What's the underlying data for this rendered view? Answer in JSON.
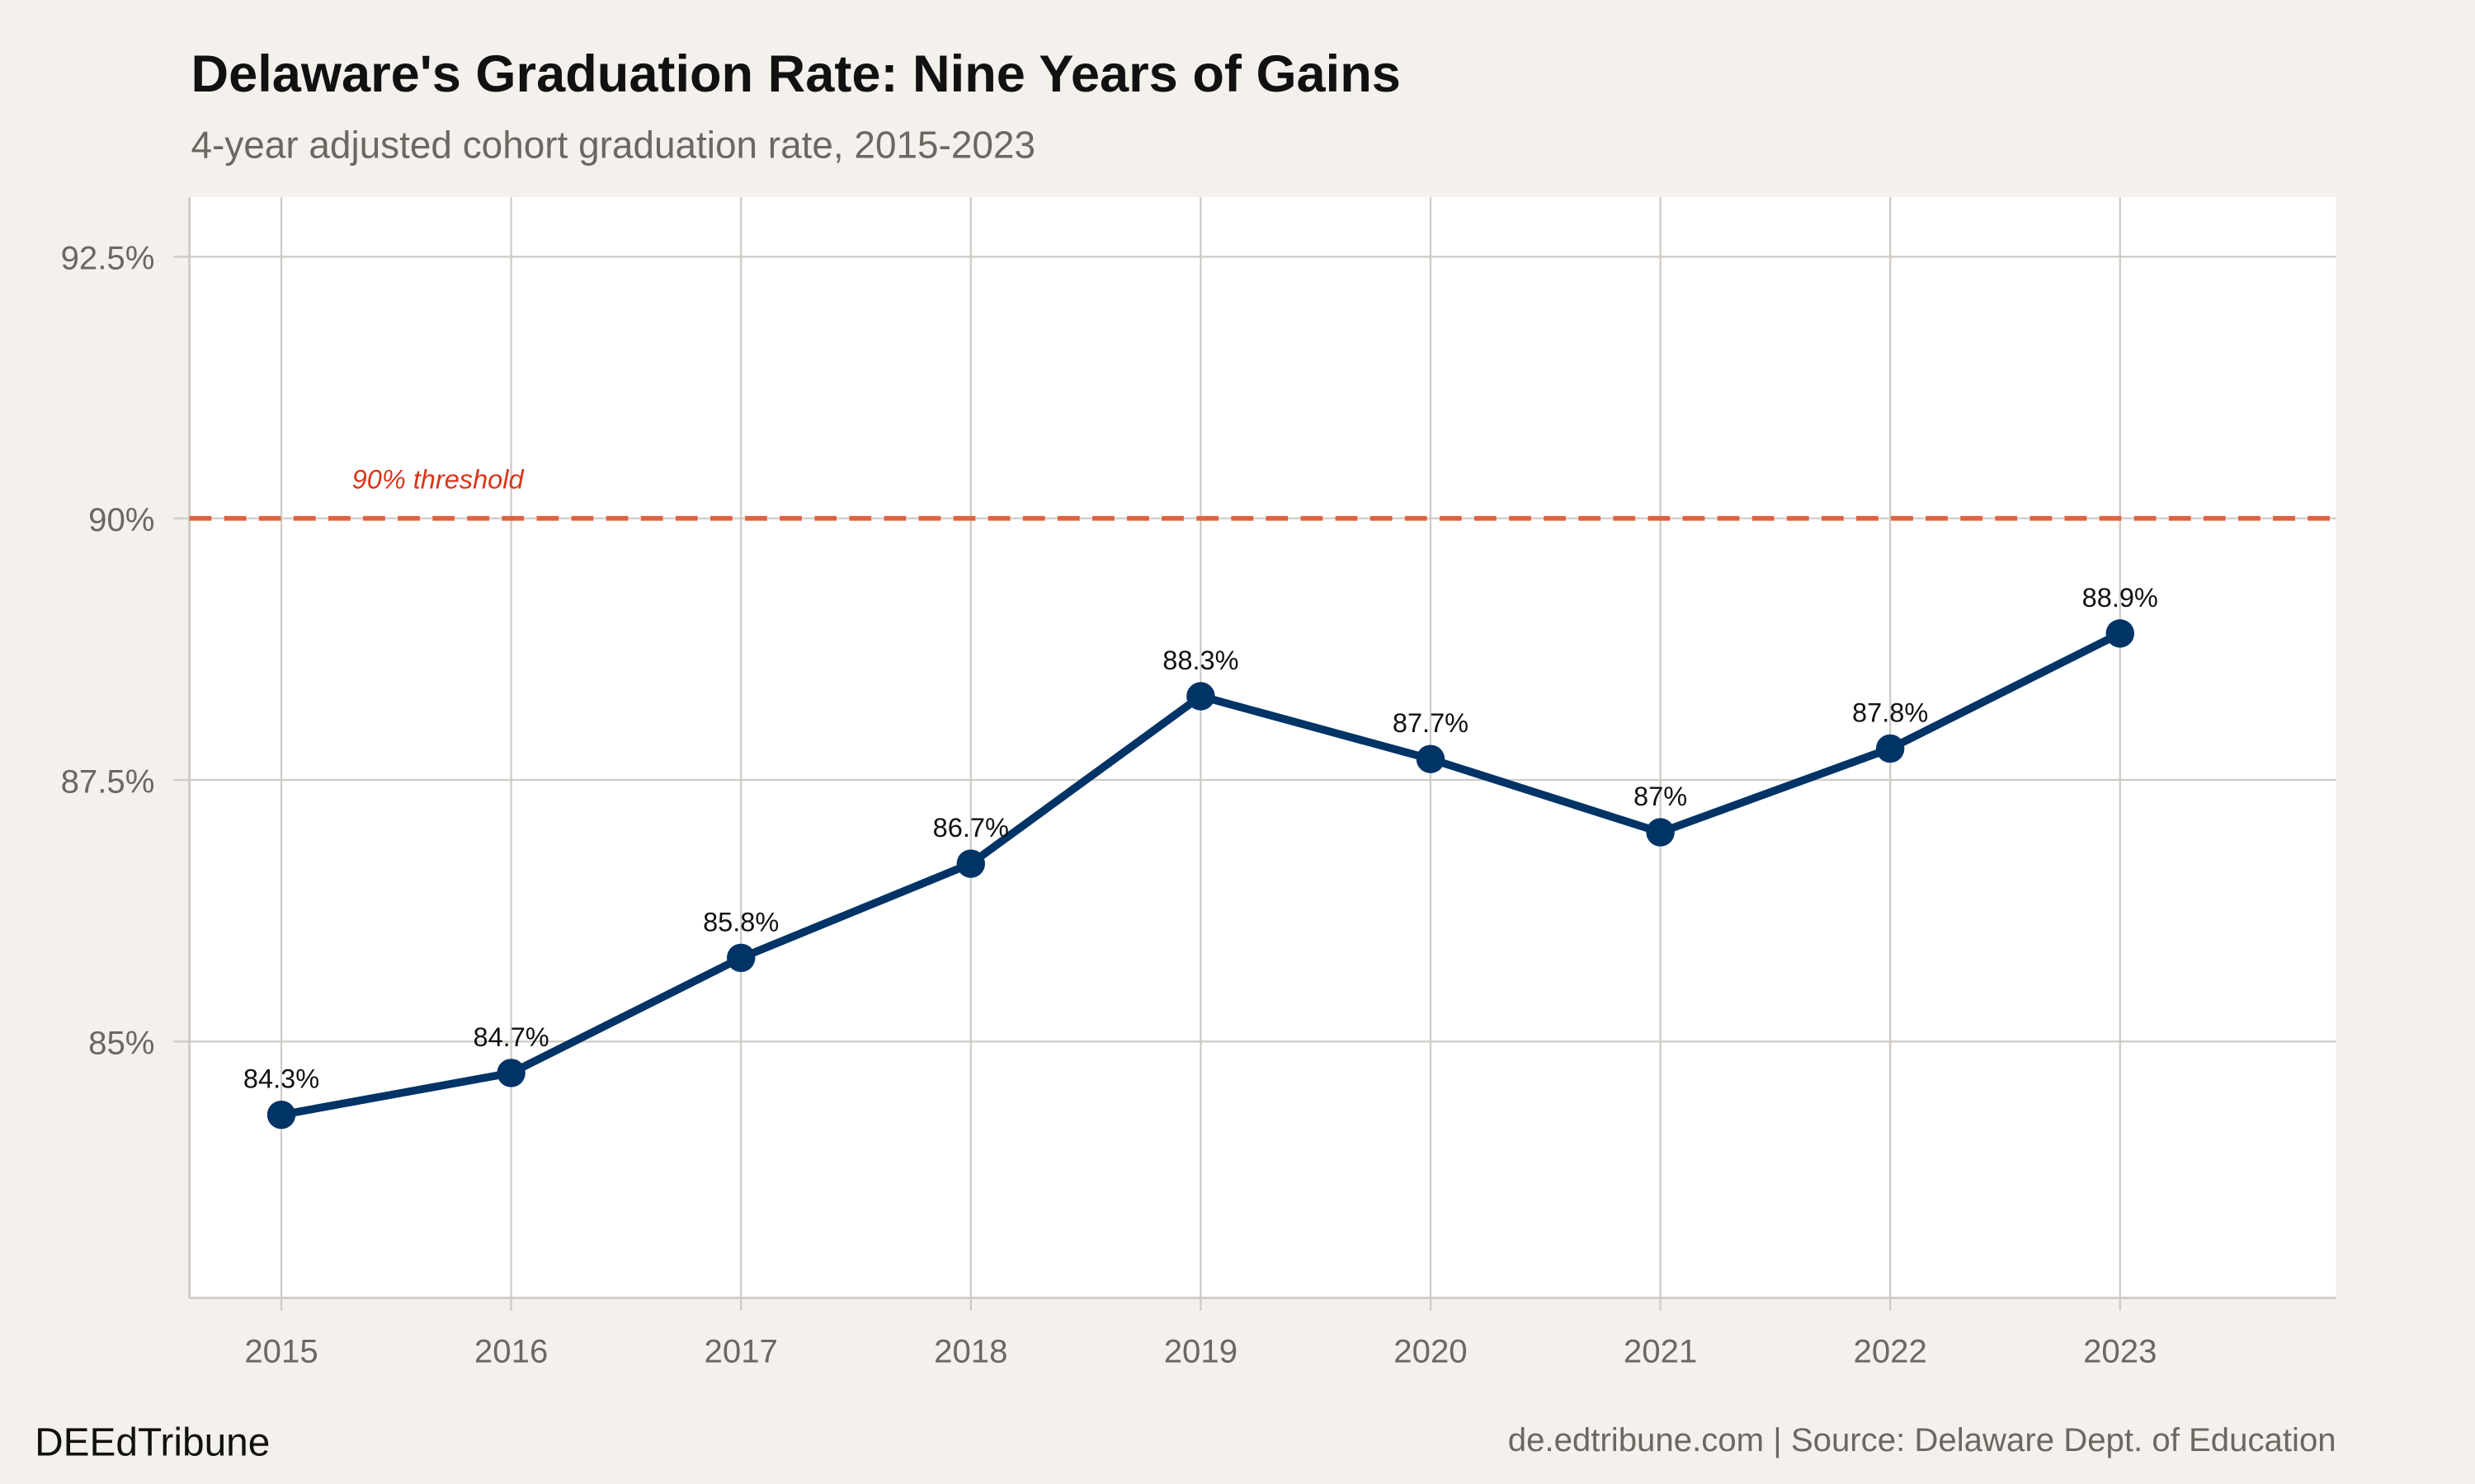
{
  "chart_data": {
    "type": "line",
    "title": "Delaware's Graduation Rate: Nine Years of Gains",
    "subtitle": "4-year adjusted cohort graduation rate, 2015-2023",
    "xlabel": "",
    "ylabel": "",
    "x": [
      2015,
      2016,
      2017,
      2018,
      2019,
      2020,
      2021,
      2022,
      2023
    ],
    "x_tick_labels": [
      "2015",
      "2016",
      "2017",
      "2018",
      "2019",
      "2020",
      "2021",
      "2022",
      "2023"
    ],
    "values": [
      84.3,
      84.7,
      85.8,
      86.7,
      88.3,
      87.7,
      87.0,
      87.8,
      88.9
    ],
    "data_labels": [
      "84.3%",
      "84.7%",
      "85.8%",
      "86.7%",
      "88.3%",
      "87.7%",
      "87%",
      "87.8%",
      "88.9%"
    ],
    "y_ticks": [
      85,
      87.5,
      90,
      92.5
    ],
    "y_tick_labels": [
      "85%",
      "87.5%",
      "90%",
      "92.5%"
    ],
    "xlim": [
      2014.6,
      2023.94
    ],
    "ylim": [
      82.55,
      93.07
    ],
    "grid": true,
    "reference_line": {
      "value": 90,
      "label": "90% threshold",
      "color": "#e0623f",
      "style": "dashed"
    },
    "colors": {
      "line": "#003366",
      "background": "#f4f1ec",
      "panel": "#ffffff",
      "grid": "#cfcbc4",
      "annotation": "#d9361b"
    }
  },
  "footer": {
    "brand": "DEEdTribune",
    "source": "de.edtribune.com | Source: Delaware Dept. of Education"
  }
}
